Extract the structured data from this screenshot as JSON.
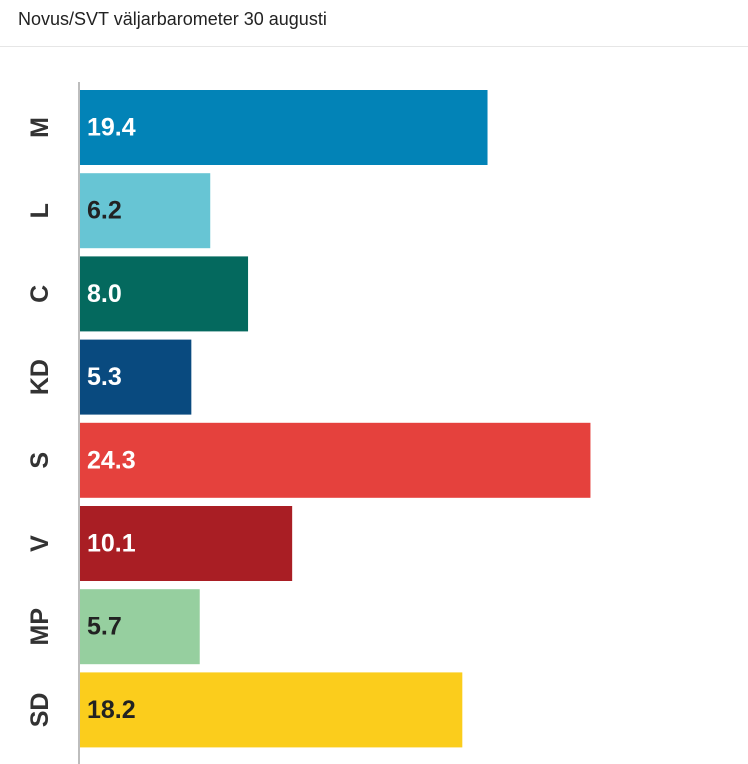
{
  "header": {
    "title": "Novus/SVT väljarbarometer 30 augusti"
  },
  "chart_data": {
    "type": "bar",
    "orientation": "horizontal",
    "title": "Novus/SVT väljarbarometer 30 augusti",
    "categories": [
      "M",
      "L",
      "C",
      "KD",
      "S",
      "V",
      "MP",
      "SD"
    ],
    "values": [
      19.4,
      6.2,
      8.0,
      5.3,
      24.3,
      10.1,
      5.7,
      18.2
    ],
    "value_labels": [
      "19.4",
      "6.2",
      "8.0",
      "5.3",
      "24.3",
      "10.1",
      "5.7",
      "18.2"
    ],
    "colors": [
      "#0283b7",
      "#67c5d4",
      "#04695e",
      "#094a7f",
      "#e5413d",
      "#a91e24",
      "#96cf9f",
      "#fbcd1c"
    ],
    "label_colors": [
      "#ffffff",
      "#222222",
      "#ffffff",
      "#ffffff",
      "#ffffff",
      "#ffffff",
      "#222222",
      "#222222"
    ],
    "xlim": [
      0,
      31.8
    ],
    "grid": false,
    "legend": "none"
  }
}
